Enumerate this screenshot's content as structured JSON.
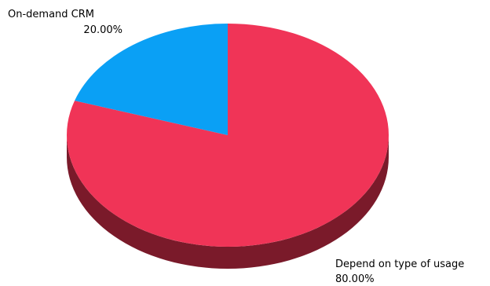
{
  "chart_data": {
    "type": "pie",
    "style": "3d",
    "series": [
      {
        "label": "Depend on type of usage",
        "value": 80.0,
        "percent_label": "80.00%",
        "color": "#f03457",
        "side_color": "#7a1a2a"
      },
      {
        "label": "On-demand CRM",
        "value": 20.0,
        "percent_label": "20.00%",
        "color": "#0aa0f5",
        "side_color": "#055a8c"
      }
    ]
  }
}
